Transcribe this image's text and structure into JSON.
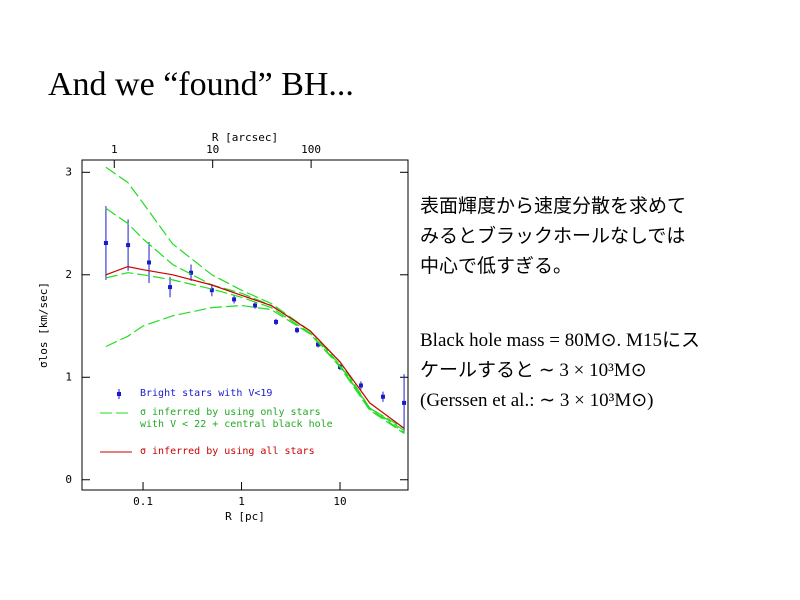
{
  "slide": {
    "title": "And we “found” BH...",
    "paragraphs": [
      "表面輝度から速度分散を求めてみるとブラックホールなしでは中心で低すぎる。",
      "Black hole mass = 80M⊙. M15にスケールすると ∼ 3 × 10³M⊙ (Gerssen et al.: ∼ 3 × 10³M⊙)"
    ]
  },
  "chart_data": {
    "type": "line",
    "xlabel": "R [pc]",
    "x2label": "R [arcsec]",
    "ylabel": "σlos [km/sec]",
    "xlog": true,
    "xlim": [
      0.024,
      49
    ],
    "xticks": [
      0.1,
      1,
      10
    ],
    "x2lim": [
      0.47,
      965
    ],
    "x2ticks": [
      1,
      10,
      100
    ],
    "ylim": [
      -0.1,
      3.12
    ],
    "yticks": [
      0,
      1,
      2,
      3
    ],
    "x": [
      0.042,
      0.07,
      0.1,
      0.2,
      0.5,
      1,
      2,
      5,
      10,
      20,
      45
    ],
    "series": [
      {
        "name": "Bright stars with V<19",
        "kind": "errorbar",
        "color": "#1a1acc",
        "x": [
          0.042,
          0.0705,
          0.115,
          0.188,
          0.307,
          0.5,
          0.84,
          1.37,
          2.24,
          3.66,
          5.98,
          10,
          16.3,
          27.3,
          44.7
        ],
        "values": [
          2.31,
          2.29,
          2.12,
          1.88,
          2.02,
          1.85,
          1.76,
          1.7,
          1.54,
          1.46,
          1.32,
          1.1,
          0.92,
          0.81,
          0.75
        ],
        "errors": [
          0.36,
          0.25,
          0.2,
          0.1,
          0.08,
          0.06,
          0.04,
          0.03,
          0.03,
          0.03,
          0.03,
          0.03,
          0.04,
          0.05,
          0.28
        ]
      },
      {
        "name": "σ inferred by using only stars with V < 22 + central black hole",
        "kind": "dashed",
        "color": "#22dd22",
        "curves": [
          [
            3.05,
            2.9,
            2.7,
            2.3,
            2.0,
            1.85,
            1.72,
            1.45,
            1.15,
            0.7,
            0.5
          ],
          [
            2.65,
            2.5,
            2.35,
            2.1,
            1.9,
            1.82,
            1.7,
            1.45,
            1.12,
            0.7,
            0.48
          ],
          [
            1.97,
            2.02,
            2.0,
            1.95,
            1.86,
            1.78,
            1.68,
            1.43,
            1.11,
            0.69,
            0.46
          ],
          [
            1.3,
            1.4,
            1.5,
            1.6,
            1.68,
            1.7,
            1.66,
            1.42,
            1.1,
            0.68,
            0.45
          ]
        ]
      },
      {
        "name": "σ inferred by using all stars",
        "kind": "solid",
        "color": "#cc0000",
        "values": [
          2.0,
          2.08,
          2.05,
          2.0,
          1.9,
          1.8,
          1.7,
          1.45,
          1.15,
          0.75,
          0.5
        ]
      }
    ]
  }
}
